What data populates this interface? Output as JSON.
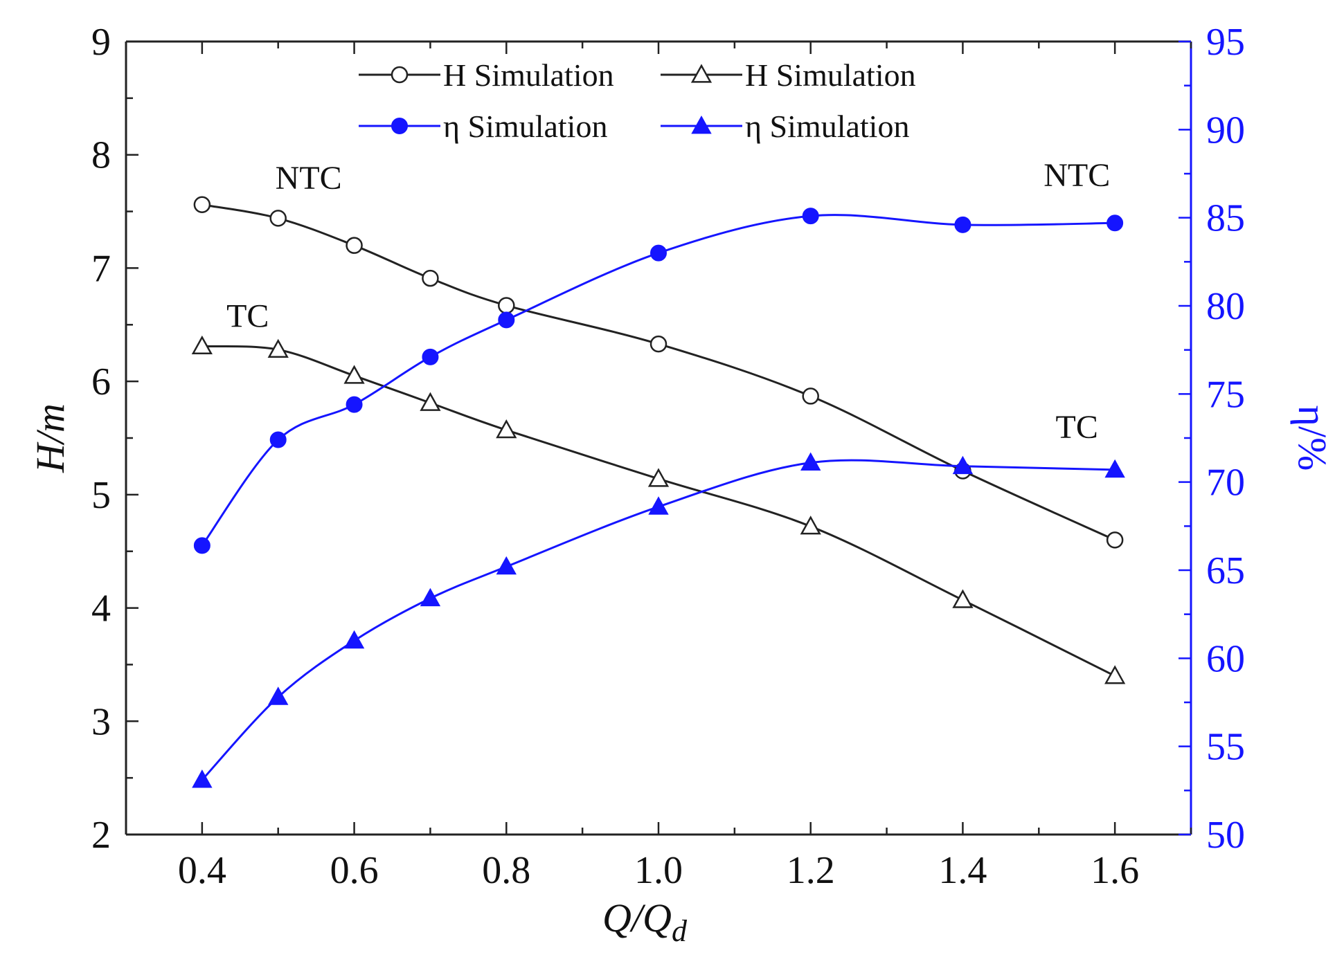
{
  "chart_data": {
    "type": "line",
    "title": "",
    "xlabel": "Q/Q",
    "xlabel_sub": "d",
    "ylabel_left": "H/m",
    "ylabel_right": "η/%",
    "xlim": [
      0.3,
      1.7
    ],
    "ylim_left": [
      2,
      9
    ],
    "ylim_right": [
      50,
      95
    ],
    "x_ticks": [
      0.4,
      0.6,
      0.8,
      1.0,
      1.2,
      1.4,
      1.6
    ],
    "x_tick_labels": [
      "0.4",
      "0.6",
      "0.8",
      "1.0",
      "1.2",
      "1.4",
      "1.6"
    ],
    "y_left_ticks": [
      2,
      3,
      4,
      5,
      6,
      7,
      8,
      9
    ],
    "y_left_tick_labels": [
      "2",
      "3",
      "4",
      "5",
      "6",
      "7",
      "8",
      "9"
    ],
    "y_right_ticks": [
      50,
      55,
      60,
      65,
      70,
      75,
      80,
      85,
      90,
      95
    ],
    "y_right_tick_labels": [
      "50",
      "55",
      "60",
      "65",
      "70",
      "75",
      "80",
      "85",
      "90",
      "95"
    ],
    "grid": false,
    "legend_position": "top-center",
    "series": [
      {
        "name": "H  Simulation",
        "group": "NTC",
        "axis": "left",
        "marker": "circle-open",
        "color": "#222222",
        "x": [
          0.4,
          0.5,
          0.6,
          0.7,
          0.8,
          1.0,
          1.2,
          1.4,
          1.6
        ],
        "values": [
          7.56,
          7.44,
          7.2,
          6.91,
          6.67,
          6.33,
          5.87,
          5.21,
          4.6
        ]
      },
      {
        "name": "H  Simulation",
        "group": "TC",
        "axis": "left",
        "marker": "triangle-open",
        "color": "#222222",
        "x": [
          0.4,
          0.5,
          0.6,
          0.7,
          0.8,
          1.0,
          1.2,
          1.4,
          1.6
        ],
        "values": [
          6.31,
          6.28,
          6.05,
          5.81,
          5.57,
          5.14,
          4.72,
          4.07,
          3.4
        ]
      },
      {
        "name": "η   Simulation",
        "group": "NTC",
        "axis": "right",
        "marker": "circle-filled",
        "color": "#1515ff",
        "x": [
          0.4,
          0.5,
          0.6,
          0.7,
          0.8,
          1.0,
          1.2,
          1.4,
          1.6
        ],
        "values": [
          66.4,
          72.4,
          74.4,
          77.1,
          79.2,
          83.0,
          85.1,
          84.6,
          84.7
        ]
      },
      {
        "name": "η   Simulation",
        "group": "TC",
        "axis": "right",
        "marker": "triangle-filled",
        "color": "#1515ff",
        "x": [
          0.4,
          0.5,
          0.6,
          0.7,
          0.8,
          1.0,
          1.2,
          1.4,
          1.6
        ],
        "values": [
          53.1,
          57.8,
          61.0,
          63.4,
          65.2,
          68.6,
          71.1,
          70.9,
          70.7
        ]
      }
    ],
    "annotations": [
      {
        "text": "NTC",
        "x": 0.54,
        "axis": "left",
        "y": 7.7
      },
      {
        "text": "TC",
        "x": 0.46,
        "axis": "left",
        "y": 6.48
      },
      {
        "text": "NTC",
        "x": 1.55,
        "axis": "right",
        "y": 86.8
      },
      {
        "text": "TC",
        "x": 1.55,
        "axis": "right",
        "y": 72.5
      }
    ]
  }
}
